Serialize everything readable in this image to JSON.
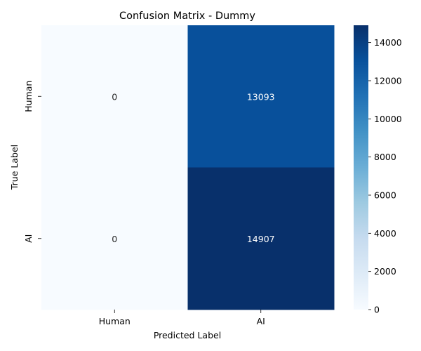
{
  "chart_data": {
    "type": "heatmap",
    "title": "Confusion Matrix - Dummy",
    "xlabel": "Predicted Label",
    "ylabel": "True Label",
    "x_categories": [
      "Human",
      "AI"
    ],
    "y_categories": [
      "Human",
      "AI"
    ],
    "values": [
      [
        0,
        13093
      ],
      [
        0,
        14907
      ]
    ],
    "colorbar": {
      "colormap": "Blues",
      "range": [
        0,
        14907
      ],
      "ticks": [
        0,
        2000,
        4000,
        6000,
        8000,
        10000,
        12000,
        14000
      ]
    },
    "annotations": true
  }
}
